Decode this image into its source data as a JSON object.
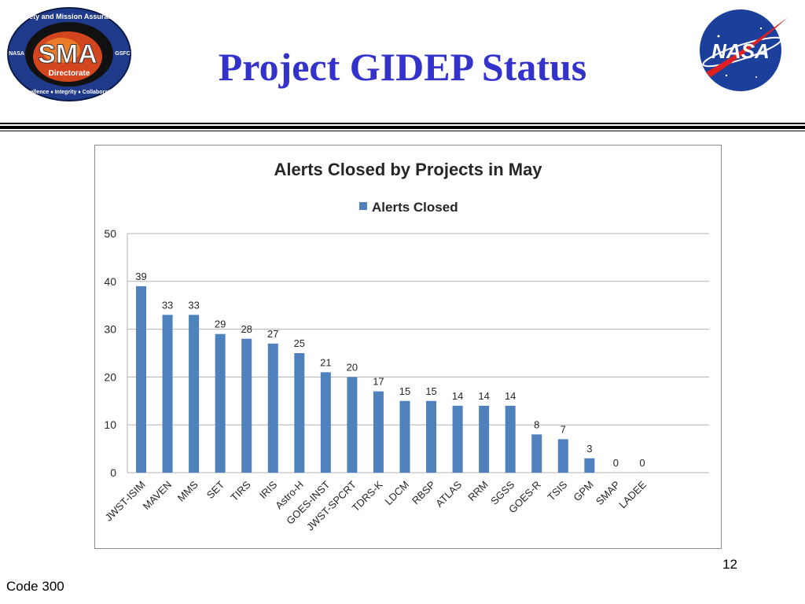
{
  "header": {
    "title": "Project GIDEP Status",
    "sma_logo": {
      "top_text": "Safety and Mission Assurance",
      "center_text": "SMA",
      "sub_text": "Directorate",
      "left_text": "NASA",
      "right_text": "GSFC",
      "bottom_text": "Excellence ♦ Integrity ♦ Collaboration"
    },
    "nasa_logo": {
      "text": "NASA"
    }
  },
  "footer": {
    "page_number": "12",
    "code": "Code 300"
  },
  "colors": {
    "title": "#3333cc",
    "bar": "#4f81bd",
    "grid": "#b3b3b3"
  },
  "chart_data": {
    "type": "bar",
    "title": "Alerts Closed by Projects in May",
    "categories": [
      "JWST-ISIM",
      "MAVEN",
      "MMS",
      "SET",
      "TIRS",
      "IRIS",
      "Astro-H",
      "GOES-INST",
      "JWST-SPCRT",
      "TDRS-K",
      "LDCM",
      "RBSP",
      "ATLAS",
      "RRM",
      "SGSS",
      "GOES-R",
      "TSIS",
      "GPM",
      "SMAP",
      "LADEE"
    ],
    "series": [
      {
        "name": "Alerts Closed",
        "values": [
          39,
          33,
          33,
          29,
          28,
          27,
          25,
          21,
          20,
          17,
          15,
          15,
          14,
          14,
          14,
          8,
          7,
          3,
          0,
          0
        ]
      }
    ],
    "ylim": [
      0,
      50
    ],
    "yticks": [
      "0",
      "10",
      "20",
      "30",
      "40",
      "50"
    ],
    "grid": true,
    "legend": "top-center",
    "data_labels": true
  }
}
